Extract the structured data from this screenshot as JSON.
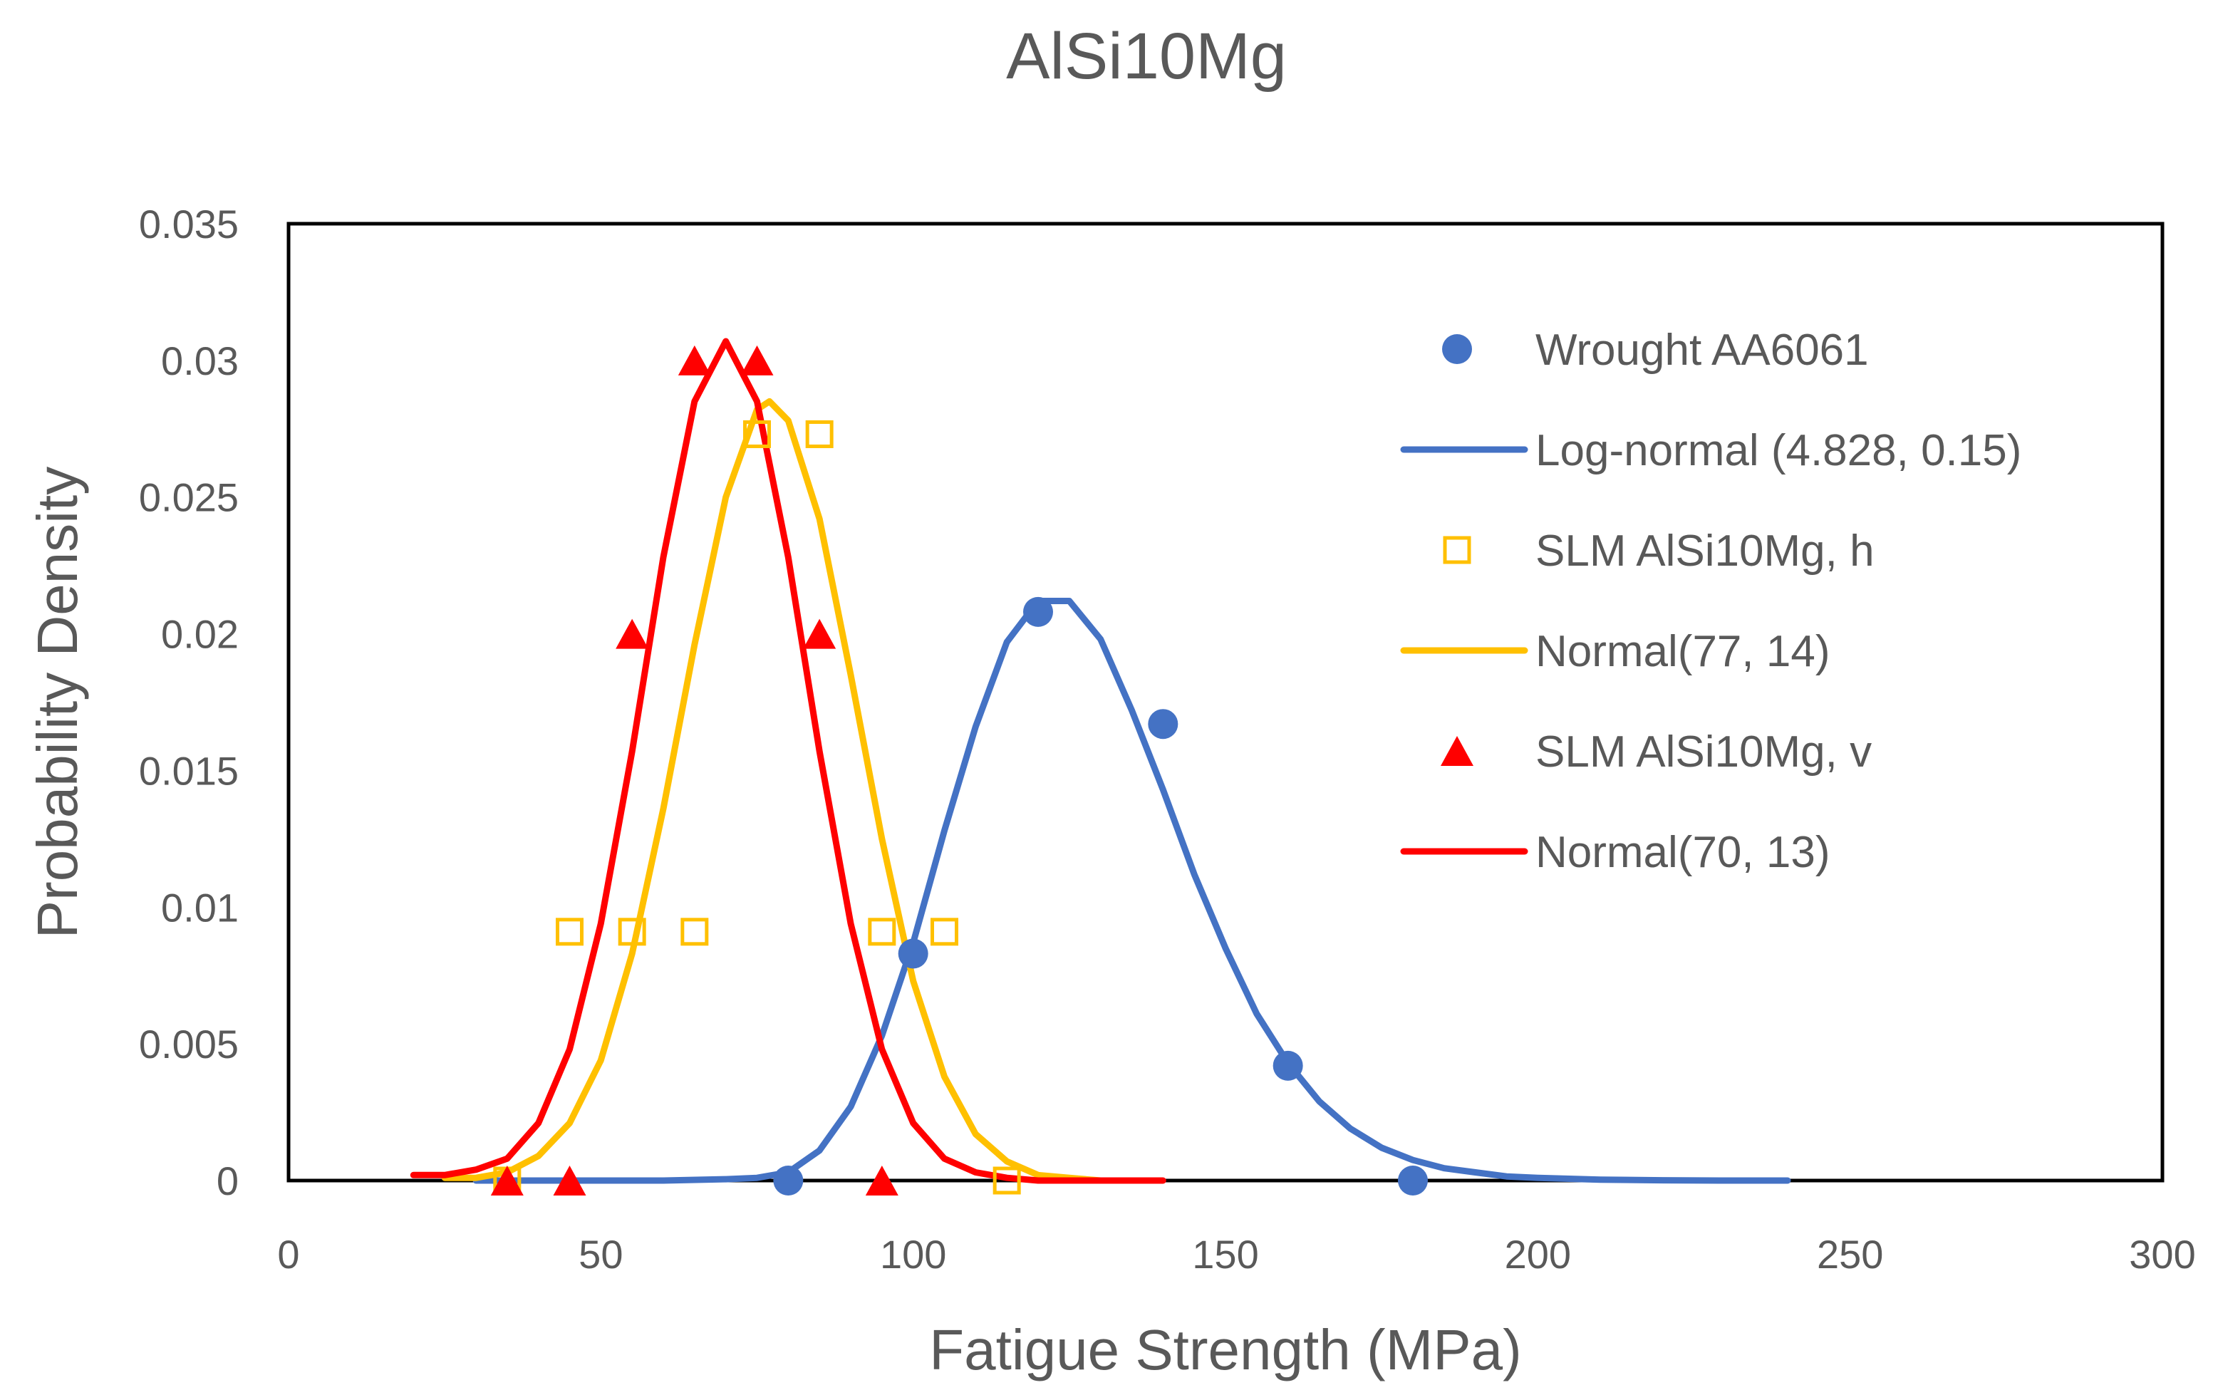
{
  "chart_data": {
    "type": "scatter",
    "title": "AlSi10Mg",
    "xlabel": "Fatigue Strength (MPa)",
    "ylabel": "Probability Density",
    "xlim": [
      0,
      300
    ],
    "ylim": [
      0,
      0.035
    ],
    "x_ticks": [
      0,
      50,
      100,
      150,
      200,
      250,
      300
    ],
    "x_tick_labels": [
      "0",
      "50",
      "100",
      "150",
      "200",
      "250",
      "300"
    ],
    "y_ticks": [
      0,
      0.005,
      0.01,
      0.015,
      0.02,
      0.025,
      0.03,
      0.035
    ],
    "y_tick_labels": [
      "0",
      "0.005",
      "0.01",
      "0.015",
      "0.02",
      "0.025",
      "0.03",
      "0.035"
    ],
    "grid": false,
    "legend_position": "right",
    "series": [
      {
        "name": "Wrought AA6061",
        "kind": "points",
        "marker": "circle",
        "color": "#4472C4",
        "x": [
          80,
          100,
          120,
          140,
          160,
          180
        ],
        "y": [
          0,
          0.0083,
          0.0208,
          0.0167,
          0.0042,
          0
        ]
      },
      {
        "name": "Log-normal (4.828, 0.15)",
        "kind": "line",
        "color": "#4472C4",
        "x": [
          30,
          40,
          50,
          60,
          70,
          75,
          80,
          85,
          90,
          95,
          100,
          105,
          110,
          115,
          120,
          125,
          130,
          135,
          140,
          145,
          150,
          155,
          160,
          165,
          170,
          175,
          180,
          185,
          190,
          195,
          200,
          210,
          220,
          230,
          240
        ],
        "y": [
          0,
          0,
          0,
          0,
          5e-05,
          0.0001,
          0.0003,
          0.0011,
          0.0027,
          0.0053,
          0.0087,
          0.0128,
          0.0166,
          0.0197,
          0.0212,
          0.0212,
          0.0198,
          0.0172,
          0.0143,
          0.0112,
          0.0085,
          0.0061,
          0.0043,
          0.0029,
          0.0019,
          0.0012,
          0.00075,
          0.00045,
          0.0003,
          0.00015,
          0.0001,
          3e-05,
          1e-05,
          0,
          0
        ]
      },
      {
        "name": "SLM AlSi10Mg, h",
        "kind": "points",
        "marker": "open-square",
        "color": "#FFC000",
        "x": [
          35,
          45,
          55,
          65,
          75,
          85,
          95,
          105,
          115
        ],
        "y": [
          0,
          0.0091,
          0.0091,
          0.0091,
          0.0273,
          0.0273,
          0.0091,
          0.0091,
          0
        ]
      },
      {
        "name": "Normal(77, 14)",
        "kind": "line",
        "color": "#FFC000",
        "x": [
          25,
          30,
          35,
          40,
          45,
          50,
          55,
          60,
          65,
          70,
          75,
          77,
          80,
          85,
          90,
          95,
          100,
          105,
          110,
          115,
          120,
          125,
          130
        ],
        "y": [
          0.0001,
          0.0001,
          0.0003,
          0.0009,
          0.0021,
          0.0044,
          0.0083,
          0.0136,
          0.0196,
          0.025,
          0.0282,
          0.0285,
          0.0278,
          0.0242,
          0.0185,
          0.0125,
          0.0073,
          0.0038,
          0.0017,
          0.0007,
          0.0002,
          0.0001,
          0
        ]
      },
      {
        "name": "SLM AlSi10Mg, v",
        "kind": "points",
        "marker": "triangle",
        "color": "#FF0000",
        "x": [
          35,
          45,
          55,
          65,
          75,
          85,
          95
        ],
        "y": [
          0,
          0,
          0.02,
          0.03,
          0.03,
          0.02,
          0
        ]
      },
      {
        "name": "Normal(70, 13)",
        "kind": "line",
        "color": "#FF0000",
        "x": [
          20,
          25,
          30,
          35,
          40,
          45,
          50,
          55,
          60,
          65,
          70,
          75,
          80,
          85,
          90,
          95,
          100,
          105,
          110,
          115,
          120,
          130,
          140
        ],
        "y": [
          0.0002,
          0.0002,
          0.0004,
          0.0008,
          0.0021,
          0.0048,
          0.0094,
          0.0157,
          0.0228,
          0.0285,
          0.0307,
          0.0285,
          0.0228,
          0.0157,
          0.0094,
          0.0048,
          0.0021,
          0.0008,
          0.0003,
          0.0001,
          0,
          0,
          0
        ]
      }
    ]
  }
}
